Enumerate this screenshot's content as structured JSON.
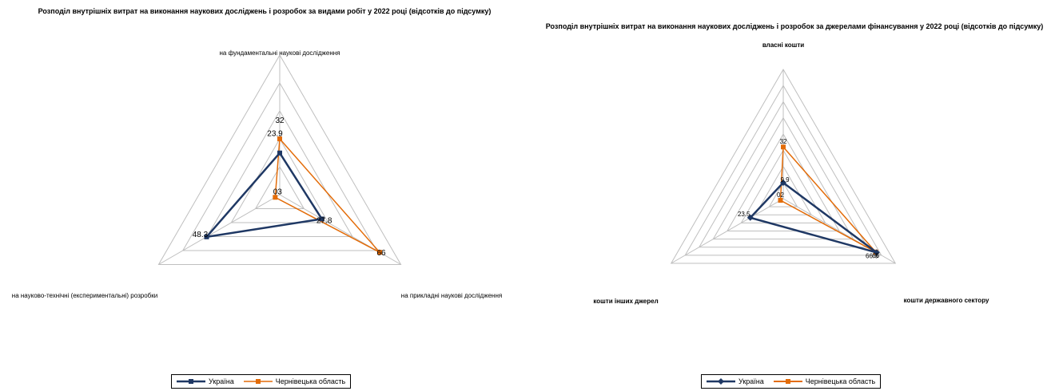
{
  "chart_data": [
    {
      "type": "radar",
      "title": "Розподіл внутрішніх витрат на виконання наукових досліджень і розробок за видами робіт у 2022 році  (відсотків до підсумку)",
      "categories": [
        "на фундаментальні наукові дослідження",
        "на прикладні наукові дослідження",
        "на науково-технічні (експериментальні) розробки"
      ],
      "rlim": [
        0,
        80
      ],
      "grid_rings": 5,
      "grid": true,
      "legend_position": "bottom",
      "series": [
        {
          "name": "Україна",
          "values": [
            23.9,
            27.8,
            48.3
          ],
          "color": "#1f3864",
          "marker": "square",
          "labels": [
            "23.9",
            "27.8",
            "48.3"
          ]
        },
        {
          "name": "Чернівецька область",
          "values": [
            32,
            66,
            3
          ],
          "color": "#e36c09",
          "marker": "square",
          "labels": [
            "32",
            "66",
            "03"
          ]
        }
      ]
    },
    {
      "type": "radar",
      "title": "Розподіл внутрішніх витрат на виконання наукових досліджень і розробок  за джерелами фінансування у 2022 році (відсотків до підсумку)",
      "categories": [
        "власні кошти",
        "кошти державного сектору",
        "кошти інших джерел"
      ],
      "rlim": [
        0,
        80
      ],
      "grid_rings": 8,
      "grid": true,
      "legend_position": "bottom",
      "series": [
        {
          "name": "Україна",
          "values": [
            9.9,
            66.6,
            23.5
          ],
          "color": "#1f3864",
          "marker": "diamond",
          "labels": [
            "9.9",
            "66.6",
            "23.5"
          ]
        },
        {
          "name": "Чернівецька область",
          "values": [
            32,
            66,
            2
          ],
          "color": "#e36c09",
          "marker": "square",
          "labels": [
            "32",
            "66",
            "02"
          ]
        }
      ]
    }
  ]
}
